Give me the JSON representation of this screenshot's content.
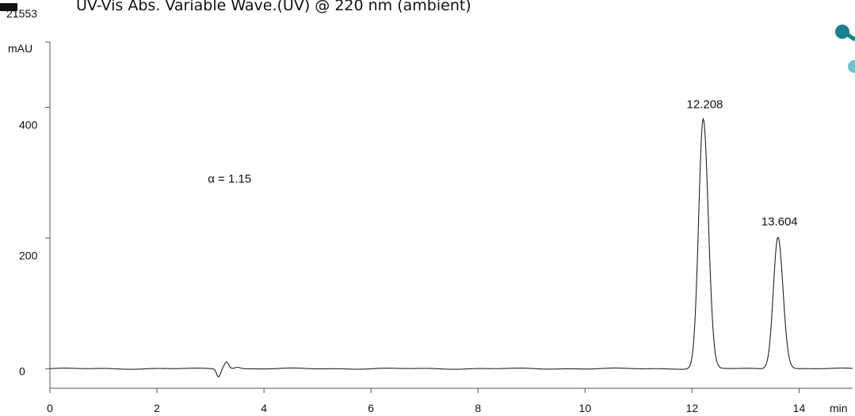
{
  "header": {
    "text": "UV-Vis Abs. Variable Wave.(UV) @ 220 nm (ambient)",
    "run_id": "21553"
  },
  "logo": {
    "icon": "molecule-icon",
    "colors": [
      "#1b7f8f",
      "#6fc2cc"
    ]
  },
  "chart_data": {
    "type": "line",
    "title": "UV-Vis Abs. Variable Wave.(UV) @ 220 nm (ambient)",
    "xlabel": "min",
    "ylabel": "mAU",
    "xlim": [
      0,
      15
    ],
    "ylim": [
      -30,
      500
    ],
    "x_ticks": [
      0,
      2,
      4,
      6,
      8,
      10,
      12,
      14
    ],
    "x_tick_labels": [
      "0",
      "2",
      "4",
      "6",
      "8",
      "10",
      "12",
      "14"
    ],
    "y_ticks": [
      0,
      200,
      400
    ],
    "y_tick_labels": [
      "0",
      "200",
      "400"
    ],
    "grid": false,
    "baseline": 0,
    "disturbance": {
      "time": 3.2,
      "dip": -12,
      "bump": 11
    },
    "peaks": [
      {
        "time": 12.208,
        "label": "12.208",
        "height": 382,
        "width": 0.085
      },
      {
        "time": 13.604,
        "label": "13.604",
        "height": 202,
        "width": 0.085
      }
    ],
    "annotations": [
      {
        "text": "α = 1.15",
        "x": 2.95,
        "y": 285
      }
    ],
    "line_color": "#222222"
  }
}
